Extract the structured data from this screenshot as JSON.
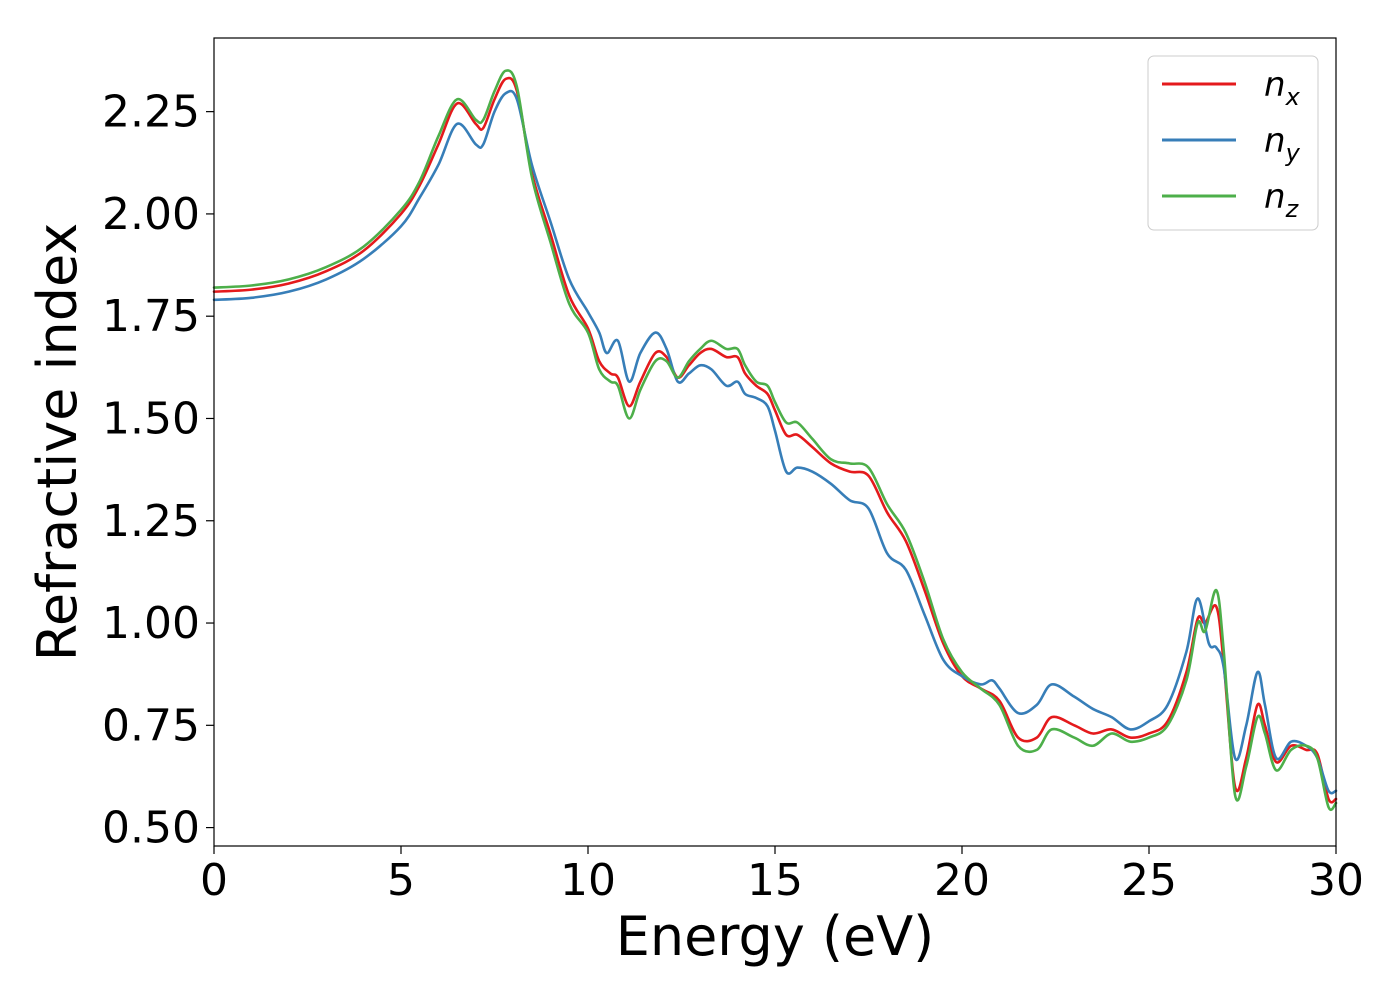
{
  "chart_data": {
    "type": "line",
    "xlabel": "Energy (eV)",
    "ylabel": "Refractive index",
    "xlim": [
      0,
      30
    ],
    "ylim": [
      0.455,
      2.43
    ],
    "xticks": [
      0,
      5,
      10,
      15,
      20,
      25,
      30
    ],
    "xtick_labels": [
      "0",
      "5",
      "10",
      "15",
      "20",
      "25",
      "30"
    ],
    "yticks": [
      0.5,
      0.75,
      1.0,
      1.25,
      1.5,
      1.75,
      2.0,
      2.25
    ],
    "ytick_labels": [
      "0.50",
      "0.75",
      "1.00",
      "1.25",
      "1.50",
      "1.75",
      "2.00",
      "2.25"
    ],
    "grid": false,
    "legend_position": "top-right",
    "series": [
      {
        "name": "n",
        "subscript": "x",
        "color": "#e41a1c",
        "points": [
          [
            0,
            1.81
          ],
          [
            1,
            1.815
          ],
          [
            2,
            1.83
          ],
          [
            3,
            1.86
          ],
          [
            4,
            1.91
          ],
          [
            5,
            2.0
          ],
          [
            5.5,
            2.07
          ],
          [
            6,
            2.17
          ],
          [
            6.5,
            2.27
          ],
          [
            7,
            2.22
          ],
          [
            7.2,
            2.21
          ],
          [
            7.5,
            2.28
          ],
          [
            7.8,
            2.33
          ],
          [
            8.1,
            2.3
          ],
          [
            8.5,
            2.1
          ],
          [
            9,
            1.95
          ],
          [
            9.5,
            1.8
          ],
          [
            10,
            1.72
          ],
          [
            10.3,
            1.64
          ],
          [
            10.6,
            1.61
          ],
          [
            10.8,
            1.6
          ],
          [
            11.1,
            1.53
          ],
          [
            11.4,
            1.59
          ],
          [
            11.8,
            1.66
          ],
          [
            12.1,
            1.65
          ],
          [
            12.4,
            1.6
          ],
          [
            12.7,
            1.63
          ],
          [
            13,
            1.66
          ],
          [
            13.3,
            1.67
          ],
          [
            13.7,
            1.65
          ],
          [
            14,
            1.65
          ],
          [
            14.2,
            1.61
          ],
          [
            14.5,
            1.58
          ],
          [
            14.8,
            1.56
          ],
          [
            15,
            1.52
          ],
          [
            15.3,
            1.46
          ],
          [
            15.6,
            1.46
          ],
          [
            16,
            1.43
          ],
          [
            16.5,
            1.39
          ],
          [
            17,
            1.37
          ],
          [
            17.5,
            1.36
          ],
          [
            18,
            1.27
          ],
          [
            18.5,
            1.2
          ],
          [
            19,
            1.08
          ],
          [
            19.5,
            0.95
          ],
          [
            20,
            0.87
          ],
          [
            20.5,
            0.84
          ],
          [
            21,
            0.81
          ],
          [
            21.5,
            0.72
          ],
          [
            22,
            0.72
          ],
          [
            22.4,
            0.77
          ],
          [
            23,
            0.75
          ],
          [
            23.5,
            0.73
          ],
          [
            24,
            0.74
          ],
          [
            24.5,
            0.72
          ],
          [
            25,
            0.73
          ],
          [
            25.5,
            0.76
          ],
          [
            26,
            0.88
          ],
          [
            26.3,
            1.01
          ],
          [
            26.5,
            1.0
          ],
          [
            26.8,
            1.04
          ],
          [
            27,
            0.9
          ],
          [
            27.3,
            0.6
          ],
          [
            27.6,
            0.67
          ],
          [
            27.9,
            0.8
          ],
          [
            28.1,
            0.75
          ],
          [
            28.4,
            0.66
          ],
          [
            28.8,
            0.7
          ],
          [
            29.2,
            0.69
          ],
          [
            29.5,
            0.68
          ],
          [
            29.8,
            0.57
          ],
          [
            30,
            0.57
          ]
        ]
      },
      {
        "name": "n",
        "subscript": "y",
        "color": "#377eb8",
        "points": [
          [
            0,
            1.79
          ],
          [
            1,
            1.795
          ],
          [
            2,
            1.81
          ],
          [
            3,
            1.84
          ],
          [
            4,
            1.89
          ],
          [
            5,
            1.97
          ],
          [
            5.5,
            2.04
          ],
          [
            6,
            2.12
          ],
          [
            6.5,
            2.22
          ],
          [
            7,
            2.17
          ],
          [
            7.2,
            2.17
          ],
          [
            7.5,
            2.25
          ],
          [
            7.8,
            2.295
          ],
          [
            8.1,
            2.28
          ],
          [
            8.5,
            2.12
          ],
          [
            9,
            1.98
          ],
          [
            9.5,
            1.84
          ],
          [
            10,
            1.76
          ],
          [
            10.3,
            1.71
          ],
          [
            10.5,
            1.66
          ],
          [
            10.8,
            1.69
          ],
          [
            11.1,
            1.59
          ],
          [
            11.4,
            1.66
          ],
          [
            11.8,
            1.71
          ],
          [
            12.1,
            1.67
          ],
          [
            12.4,
            1.59
          ],
          [
            12.7,
            1.61
          ],
          [
            13,
            1.63
          ],
          [
            13.3,
            1.62
          ],
          [
            13.7,
            1.58
          ],
          [
            14,
            1.59
          ],
          [
            14.2,
            1.56
          ],
          [
            14.5,
            1.55
          ],
          [
            14.8,
            1.53
          ],
          [
            15,
            1.47
          ],
          [
            15.3,
            1.37
          ],
          [
            15.6,
            1.38
          ],
          [
            16,
            1.37
          ],
          [
            16.5,
            1.34
          ],
          [
            17,
            1.3
          ],
          [
            17.5,
            1.28
          ],
          [
            18,
            1.17
          ],
          [
            18.5,
            1.13
          ],
          [
            19,
            1.02
          ],
          [
            19.5,
            0.91
          ],
          [
            20,
            0.87
          ],
          [
            20.5,
            0.85
          ],
          [
            20.8,
            0.86
          ],
          [
            21,
            0.84
          ],
          [
            21.5,
            0.78
          ],
          [
            22,
            0.8
          ],
          [
            22.4,
            0.85
          ],
          [
            23,
            0.82
          ],
          [
            23.5,
            0.79
          ],
          [
            24,
            0.77
          ],
          [
            24.5,
            0.74
          ],
          [
            25,
            0.76
          ],
          [
            25.5,
            0.8
          ],
          [
            26,
            0.93
          ],
          [
            26.3,
            1.06
          ],
          [
            26.6,
            0.95
          ],
          [
            26.8,
            0.94
          ],
          [
            27,
            0.89
          ],
          [
            27.3,
            0.67
          ],
          [
            27.6,
            0.75
          ],
          [
            27.9,
            0.88
          ],
          [
            28.1,
            0.8
          ],
          [
            28.4,
            0.67
          ],
          [
            28.8,
            0.71
          ],
          [
            29.2,
            0.7
          ],
          [
            29.5,
            0.67
          ],
          [
            29.8,
            0.59
          ],
          [
            30,
            0.59
          ]
        ]
      },
      {
        "name": "n",
        "subscript": "z",
        "color": "#4daf4a",
        "points": [
          [
            0,
            1.82
          ],
          [
            1,
            1.825
          ],
          [
            2,
            1.84
          ],
          [
            3,
            1.87
          ],
          [
            4,
            1.92
          ],
          [
            5,
            2.01
          ],
          [
            5.5,
            2.08
          ],
          [
            6,
            2.19
          ],
          [
            6.5,
            2.28
          ],
          [
            7,
            2.23
          ],
          [
            7.2,
            2.23
          ],
          [
            7.5,
            2.3
          ],
          [
            7.8,
            2.35
          ],
          [
            8.1,
            2.31
          ],
          [
            8.5,
            2.09
          ],
          [
            9,
            1.93
          ],
          [
            9.5,
            1.78
          ],
          [
            10,
            1.71
          ],
          [
            10.3,
            1.62
          ],
          [
            10.6,
            1.59
          ],
          [
            10.8,
            1.58
          ],
          [
            11.1,
            1.5
          ],
          [
            11.4,
            1.57
          ],
          [
            11.8,
            1.64
          ],
          [
            12.1,
            1.64
          ],
          [
            12.4,
            1.6
          ],
          [
            12.7,
            1.64
          ],
          [
            13,
            1.67
          ],
          [
            13.3,
            1.69
          ],
          [
            13.7,
            1.67
          ],
          [
            14,
            1.67
          ],
          [
            14.2,
            1.63
          ],
          [
            14.5,
            1.59
          ],
          [
            14.8,
            1.58
          ],
          [
            15,
            1.54
          ],
          [
            15.3,
            1.49
          ],
          [
            15.6,
            1.49
          ],
          [
            16,
            1.45
          ],
          [
            16.5,
            1.4
          ],
          [
            17,
            1.39
          ],
          [
            17.5,
            1.38
          ],
          [
            18,
            1.29
          ],
          [
            18.5,
            1.22
          ],
          [
            19,
            1.1
          ],
          [
            19.5,
            0.96
          ],
          [
            20,
            0.88
          ],
          [
            20.5,
            0.84
          ],
          [
            21,
            0.8
          ],
          [
            21.5,
            0.7
          ],
          [
            22,
            0.69
          ],
          [
            22.4,
            0.74
          ],
          [
            23,
            0.72
          ],
          [
            23.5,
            0.7
          ],
          [
            24,
            0.73
          ],
          [
            24.5,
            0.71
          ],
          [
            25,
            0.72
          ],
          [
            25.5,
            0.75
          ],
          [
            26,
            0.86
          ],
          [
            26.3,
            1.0
          ],
          [
            26.5,
            0.98
          ],
          [
            26.8,
            1.08
          ],
          [
            27,
            0.93
          ],
          [
            27.3,
            0.58
          ],
          [
            27.6,
            0.65
          ],
          [
            27.9,
            0.77
          ],
          [
            28.1,
            0.73
          ],
          [
            28.4,
            0.64
          ],
          [
            28.8,
            0.69
          ],
          [
            29.2,
            0.7
          ],
          [
            29.5,
            0.67
          ],
          [
            29.8,
            0.55
          ],
          [
            30,
            0.56
          ]
        ]
      }
    ]
  }
}
